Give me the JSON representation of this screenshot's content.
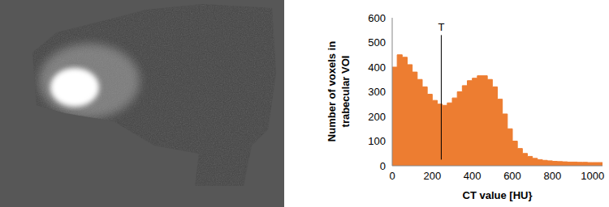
{
  "chart_data": {
    "type": "histogram",
    "xlabel": "CT value [HU}",
    "ylabel": "Number of voxels in trabecular VOI",
    "color": "#ed7d31",
    "bins": [
      0,
      25,
      50,
      75,
      100,
      125,
      150,
      175,
      200,
      225,
      250,
      275,
      300,
      325,
      350,
      375,
      400,
      425,
      450,
      475,
      500,
      525,
      550,
      575,
      600,
      625,
      650,
      675,
      700,
      725,
      750,
      775,
      800,
      825,
      850,
      875,
      900,
      925,
      950,
      975,
      1000,
      1025,
      1050
    ],
    "counts": [
      400,
      450,
      440,
      410,
      380,
      350,
      320,
      290,
      265,
      250,
      245,
      255,
      275,
      300,
      325,
      345,
      355,
      365,
      365,
      350,
      320,
      270,
      210,
      150,
      100,
      70,
      50,
      38,
      30,
      25,
      22,
      20,
      18,
      17,
      16,
      15,
      15,
      14,
      14,
      13,
      13,
      13
    ],
    "xlim": [
      0,
      1050
    ],
    "ylim": [
      0,
      600
    ],
    "xticks": [
      0,
      200,
      400,
      600,
      800,
      1000
    ],
    "yticks": [
      0,
      100,
      200,
      300,
      400,
      500,
      600
    ],
    "grid": false,
    "annotations": [
      {
        "type": "vline",
        "x": 245,
        "y": [
          25,
          530
        ],
        "label": "T"
      }
    ]
  }
}
